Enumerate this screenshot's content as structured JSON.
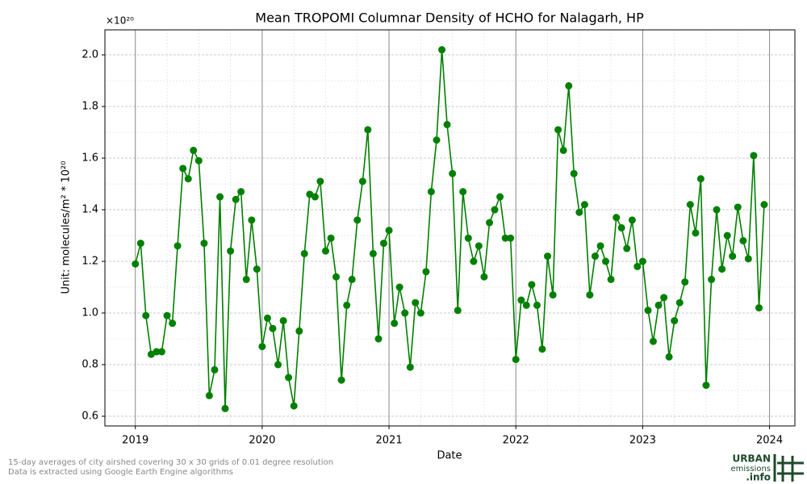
{
  "chart_data": {
    "type": "line",
    "title": "Mean TROPOMI Columnar Density of HCHO for Nalagarh, HP",
    "offset_label": "×10²⁰",
    "xlabel": "Date",
    "ylabel": "Unit: molecules/m² * 10²⁰",
    "footnote": [
      "15-day averages of city airshed covering 30 x 30 grids of 0.01 degree resolution",
      "Data is extracted using Google Earth Engine algorithms"
    ],
    "logo": [
      "URBAN",
      "emissions",
      ".info"
    ],
    "x": [
      2019.0,
      2019.042,
      2019.083,
      2019.125,
      2019.167,
      2019.208,
      2019.25,
      2019.292,
      2019.333,
      2019.375,
      2019.417,
      2019.458,
      2019.5,
      2019.542,
      2019.583,
      2019.625,
      2019.667,
      2019.708,
      2019.75,
      2019.792,
      2019.833,
      2019.875,
      2019.917,
      2019.958,
      2020.0,
      2020.042,
      2020.083,
      2020.125,
      2020.167,
      2020.208,
      2020.25,
      2020.292,
      2020.333,
      2020.375,
      2020.417,
      2020.458,
      2020.5,
      2020.542,
      2020.583,
      2020.625,
      2020.667,
      2020.708,
      2020.75,
      2020.792,
      2020.833,
      2020.875,
      2020.917,
      2020.958,
      2021.0,
      2021.042,
      2021.083,
      2021.125,
      2021.167,
      2021.208,
      2021.25,
      2021.292,
      2021.333,
      2021.375,
      2021.417,
      2021.458,
      2021.5,
      2021.542,
      2021.583,
      2021.625,
      2021.667,
      2021.708,
      2021.75,
      2021.792,
      2021.833,
      2021.875,
      2021.917,
      2021.958,
      2022.0,
      2022.042,
      2022.083,
      2022.125,
      2022.167,
      2022.208,
      2022.25,
      2022.292,
      2022.333,
      2022.375,
      2022.417,
      2022.458,
      2022.5,
      2022.542,
      2022.583,
      2022.625,
      2022.667,
      2022.708,
      2022.75,
      2022.792,
      2022.833,
      2022.875,
      2022.917,
      2022.958,
      2023.0,
      2023.042,
      2023.083,
      2023.125,
      2023.167,
      2023.208,
      2023.25,
      2023.292,
      2023.333,
      2023.375,
      2023.417,
      2023.458,
      2023.5,
      2023.542,
      2023.583,
      2023.625,
      2023.667,
      2023.708,
      2023.75,
      2023.792,
      2023.833,
      2023.875,
      2023.917,
      2023.958
    ],
    "series": [
      {
        "name": "HCHO",
        "color": "#008000",
        "values": [
          1.19,
          1.27,
          0.99,
          0.84,
          0.85,
          0.85,
          0.99,
          0.96,
          1.26,
          1.56,
          1.52,
          1.63,
          1.59,
          1.27,
          0.68,
          0.78,
          1.45,
          0.63,
          1.24,
          1.44,
          1.47,
          1.13,
          1.36,
          1.17,
          0.87,
          0.98,
          0.94,
          0.8,
          0.97,
          0.75,
          0.64,
          0.93,
          1.23,
          1.46,
          1.45,
          1.51,
          1.24,
          1.29,
          1.14,
          0.74,
          1.03,
          1.13,
          1.36,
          1.51,
          1.71,
          1.23,
          0.9,
          1.27,
          1.32,
          0.96,
          1.1,
          1.0,
          0.79,
          1.04,
          1.0,
          1.16,
          1.47,
          1.67,
          2.02,
          1.73,
          1.54,
          1.01,
          1.47,
          1.29,
          1.2,
          1.26,
          1.14,
          1.35,
          1.4,
          1.45,
          1.29,
          1.29,
          0.82,
          1.05,
          1.03,
          1.11,
          1.03,
          0.86,
          1.22,
          1.07,
          1.71,
          1.63,
          1.88,
          1.54,
          1.39,
          1.42,
          1.07,
          1.22,
          1.26,
          1.2,
          1.13,
          1.37,
          1.33,
          1.25,
          1.36,
          1.18,
          1.2,
          1.01,
          0.89,
          1.03,
          1.06,
          0.83,
          0.97,
          1.04,
          1.12,
          1.42,
          1.31,
          1.52,
          0.72,
          1.13,
          1.4,
          1.17,
          1.3,
          1.22,
          1.41,
          1.28,
          1.21,
          1.61,
          1.02,
          1.42
        ]
      }
    ],
    "xlim": [
      2018.76,
      2024.2
    ],
    "xticks": [
      2019,
      2020,
      2021,
      2022,
      2023,
      2024
    ],
    "ylim": [
      0.5625,
      2.097
    ],
    "yticks": [
      0.6,
      0.8,
      {
        "value": 1,
        "label": "1.0"
      },
      1.2,
      1.4,
      1.6,
      1.8,
      {
        "value": 2,
        "label": "2.0"
      }
    ],
    "grid": true,
    "minor_grid": true
  }
}
